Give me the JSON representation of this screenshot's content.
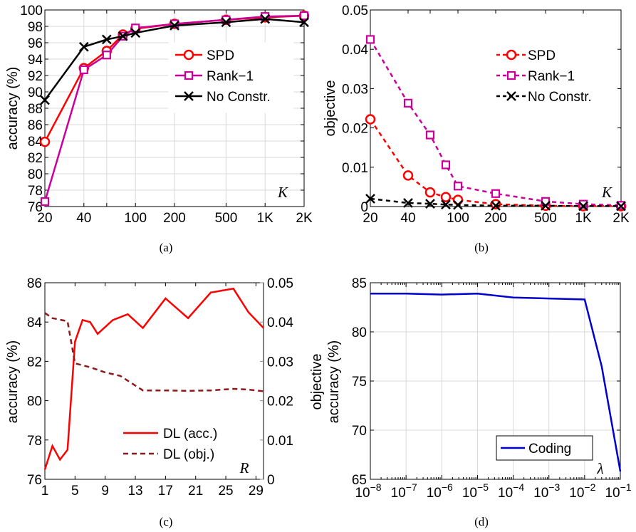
{
  "chart_data": [
    {
      "id": "a",
      "type": "line",
      "caption": "(a)",
      "ylabel": "accuracy (%)",
      "xlabel_symbol": "K",
      "x_ticks": [
        "20",
        "40",
        "",
        "100",
        "200",
        "500",
        "1K",
        "2K"
      ],
      "y_ticks": [
        "76",
        "78",
        "80",
        "82",
        "84",
        "86",
        "88",
        "90",
        "92",
        "94",
        "96",
        "98",
        "100"
      ],
      "ylim": [
        76,
        100
      ],
      "grid": true,
      "legend": "right",
      "series": [
        {
          "name": "SPD",
          "color": "#ff0000",
          "marker": "circle",
          "dash": false,
          "x": [
            20,
            40,
            60,
            80,
            100,
            200,
            500,
            1000,
            2000
          ],
          "y": [
            83.9,
            92.9,
            95.0,
            97.0,
            97.7,
            98.3,
            98.8,
            99.1,
            99.3
          ]
        },
        {
          "name": "Rank−1",
          "color": "#cc0099",
          "marker": "square",
          "dash": false,
          "x": [
            20,
            40,
            60,
            80,
            100,
            200,
            500,
            1000,
            2000
          ],
          "y": [
            76.6,
            92.7,
            94.5,
            96.8,
            97.8,
            98.3,
            98.8,
            99.2,
            99.3
          ]
        },
        {
          "name": "No Constr.",
          "color": "#000000",
          "marker": "x",
          "dash": false,
          "x": [
            20,
            40,
            60,
            80,
            100,
            200,
            500,
            1000,
            2000
          ],
          "y": [
            89.0,
            95.5,
            96.4,
            96.8,
            97.2,
            98.1,
            98.5,
            98.9,
            98.5
          ]
        }
      ]
    },
    {
      "id": "b",
      "type": "line",
      "caption": "(b)",
      "ylabel": "objective",
      "xlabel_symbol": "K",
      "x_ticks": [
        "20",
        "40",
        "",
        "100",
        "200",
        "500",
        "1K",
        "2K"
      ],
      "y_ticks": [
        "0",
        "0.01",
        "0.02",
        "0.03",
        "0.04",
        "0.05"
      ],
      "ylim": [
        0,
        0.05
      ],
      "grid": false,
      "legend": "top-right",
      "series": [
        {
          "name": "SPD",
          "color": "#ff0000",
          "marker": "circle",
          "dash": true,
          "x": [
            20,
            40,
            60,
            80,
            100,
            200,
            500,
            1000,
            2000
          ],
          "y": [
            0.0222,
            0.0079,
            0.0036,
            0.0024,
            0.0017,
            0.0006,
            0.0002,
            0.0001,
            0.0001
          ]
        },
        {
          "name": "Rank−1",
          "color": "#cc0099",
          "marker": "square",
          "dash": true,
          "x": [
            20,
            40,
            60,
            80,
            100,
            200,
            500,
            1000,
            2000
          ],
          "y": [
            0.0425,
            0.0263,
            0.0182,
            0.0106,
            0.0052,
            0.0033,
            0.0013,
            0.0006,
            0.0003
          ]
        },
        {
          "name": "No Constr.",
          "color": "#000000",
          "marker": "x",
          "dash": true,
          "x": [
            20,
            40,
            60,
            80,
            100,
            200,
            500,
            1000,
            2000
          ],
          "y": [
            0.002,
            0.0009,
            0.0007,
            0.0005,
            0.0004,
            0.0002,
            0.0002,
            0.0001,
            0.0001
          ]
        }
      ]
    },
    {
      "id": "c",
      "type": "line",
      "caption": "(c)",
      "ylabel": "accuracy (%)",
      "ylabel_right": "objective",
      "xlabel_symbol": "R",
      "x_ticks": [
        "1",
        "5",
        "9",
        "13",
        "17",
        "21",
        "25",
        "29"
      ],
      "y_ticks": [
        "76",
        "78",
        "80",
        "82",
        "84",
        "86"
      ],
      "y_ticks_right": [
        "0",
        "0.01",
        "0.02",
        "0.03",
        "0.04",
        "0.05"
      ],
      "ylim": [
        76,
        86
      ],
      "ylim_right": [
        0,
        0.05
      ],
      "grid": false,
      "legend": "bottom-center",
      "series": [
        {
          "name": "DL (acc.)",
          "color": "#ff0000",
          "dash": false,
          "axis": "left",
          "x": [
            1,
            2,
            3,
            4,
            5,
            6,
            7,
            8,
            10,
            12,
            14,
            17,
            20,
            23,
            26,
            28,
            30
          ],
          "y": [
            76.5,
            77.7,
            77.0,
            77.5,
            83.0,
            84.1,
            84.0,
            83.4,
            84.1,
            84.4,
            83.7,
            85.2,
            84.2,
            85.5,
            85.7,
            84.5,
            83.7
          ]
        },
        {
          "name": "DL (obj.)",
          "color": "#8b1a1a",
          "dash": true,
          "axis": "right",
          "x": [
            1,
            2,
            4,
            5,
            6,
            7,
            9,
            11,
            14,
            17,
            20,
            23,
            26,
            28,
            30
          ],
          "y": [
            0.0423,
            0.041,
            0.0402,
            0.0295,
            0.029,
            0.0285,
            0.0272,
            0.0263,
            0.0226,
            0.0226,
            0.0225,
            0.0226,
            0.023,
            0.0228,
            0.0224
          ]
        }
      ]
    },
    {
      "id": "d",
      "type": "line",
      "caption": "(d)",
      "ylabel": "accuracy (%)",
      "xlabel_symbol": "λ",
      "x_ticks": [
        "8",
        "7",
        "6",
        "5",
        "4",
        "3",
        "2",
        "1"
      ],
      "x_tick_base": "10",
      "x_tick_sign": "−",
      "y_ticks": [
        "65",
        "70",
        "75",
        "80",
        "85"
      ],
      "ylim": [
        65,
        85
      ],
      "x_log": true,
      "grid": true,
      "legend": "bottom-right",
      "series": [
        {
          "name": "Coding",
          "color": "#0000cc",
          "dash": false,
          "x": [
            1e-08,
            1e-07,
            1e-06,
            1e-05,
            0.0001,
            0.001,
            0.01,
            0.03,
            0.1
          ],
          "y": [
            83.9,
            83.9,
            83.8,
            83.9,
            83.5,
            83.4,
            83.3,
            76.5,
            65.8
          ]
        }
      ]
    }
  ]
}
